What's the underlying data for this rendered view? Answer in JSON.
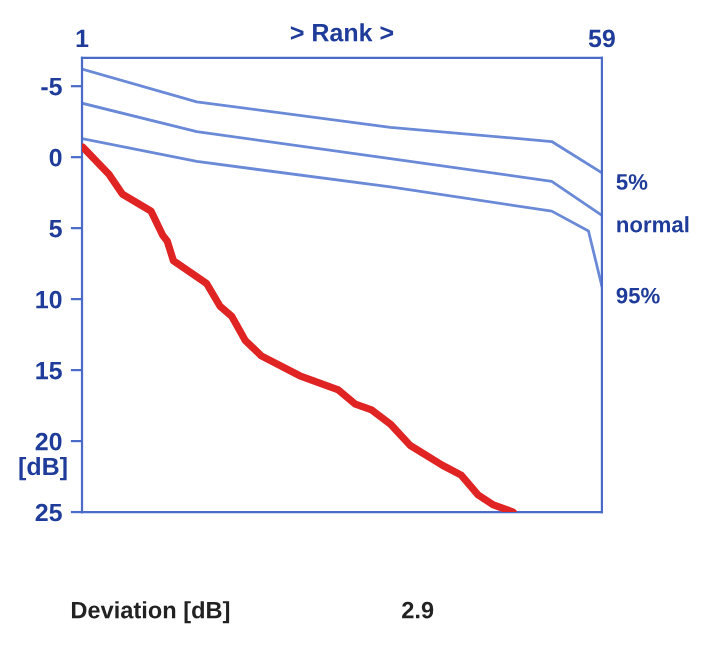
{
  "chart_data": {
    "type": "line",
    "xlabel": "> Rank >",
    "ylabel": "[dB]",
    "xlim": [
      1,
      59
    ],
    "xticks": [
      1,
      59
    ],
    "ylim": [
      25,
      -7
    ],
    "yticks": [
      -5,
      0,
      5,
      10,
      15,
      20,
      25
    ],
    "grid": false,
    "legend": false,
    "marker": "none",
    "line_style": "solid",
    "series": [
      {
        "name": "5%",
        "color": "#6a8ad8",
        "x": [
          1,
          13.8,
          35.4,
          53.4,
          59
        ],
        "values": [
          -6.2,
          -3.9,
          -2.1,
          -1.1,
          1.1
        ]
      },
      {
        "name": "normal",
        "color": "#6a8ad8",
        "x": [
          1,
          13.8,
          35.4,
          53.4,
          59
        ],
        "values": [
          -3.8,
          -1.8,
          0.1,
          1.7,
          4.1
        ]
      },
      {
        "name": "95%",
        "color": "#6a8ad8",
        "x": [
          1,
          13.8,
          35.4,
          53.4,
          57.5,
          59
        ],
        "values": [
          -1.3,
          0.3,
          2.1,
          3.8,
          5.2,
          9.1
        ]
      },
      {
        "color": "#e02424",
        "x": [
          1.1,
          4,
          5.5,
          8.7,
          10,
          10.5,
          11.2,
          14.9,
          16.4,
          17.7,
          19.2,
          21,
          25.3,
          29.6,
          31.5,
          33.3,
          35.4,
          37.6,
          41.2,
          43.3,
          45.2,
          46.9,
          49.1
        ],
        "values": [
          -0.7,
          1.2,
          2.6,
          3.8,
          5.5,
          5.9,
          7.3,
          8.9,
          10.5,
          11.2,
          12.9,
          14.0,
          15.4,
          16.4,
          17.4,
          17.8,
          18.8,
          20.3,
          21.7,
          22.4,
          23.8,
          24.5,
          25
        ]
      }
    ],
    "annotations": [
      "Deviation [dB]",
      "2.9"
    ]
  }
}
